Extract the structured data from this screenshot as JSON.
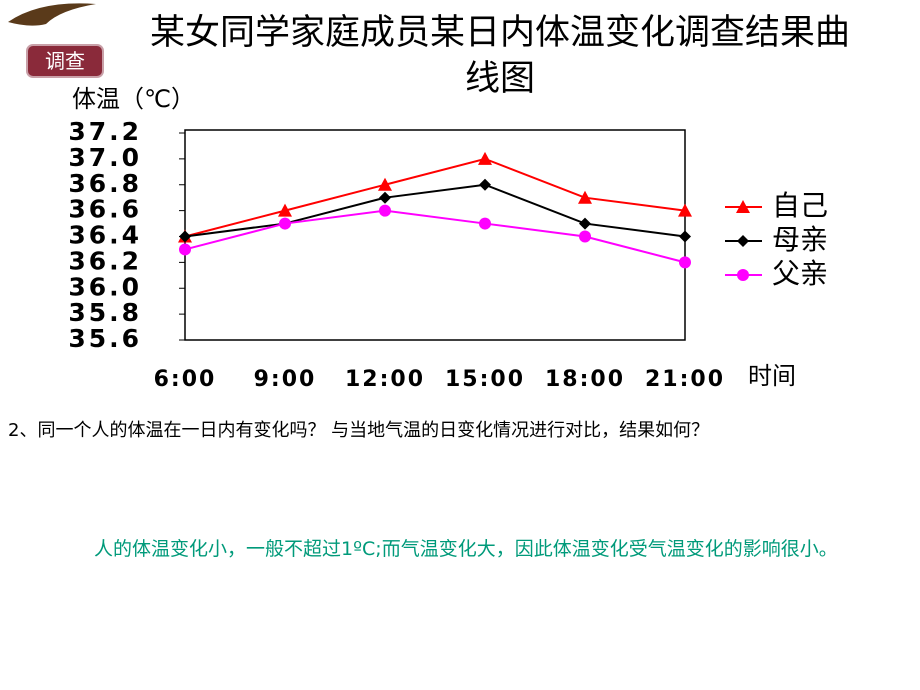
{
  "badge": "调查",
  "question": "2、同一个人的体温在一日内有变化吗？   与当地气温的日变化情况进行对比，结果如何？",
  "answer": "人的体温变化小，一般不超过1ºC;而气温变化大，因此体温变化受气温变化的影响很小。",
  "chart_data": {
    "type": "line",
    "title": "某女同学家庭成员某日内体温变化调查结果曲线图",
    "y_label": "体温（℃）",
    "x_label": "时间",
    "categories": [
      "6:00",
      "9:00",
      "12:00",
      "15:00",
      "18:00",
      "21:00"
    ],
    "series": [
      {
        "name": "自己",
        "color": "#ff0000",
        "marker": "triangle",
        "values": [
          36.4,
          36.6,
          36.8,
          37.0,
          36.7,
          36.6
        ]
      },
      {
        "name": "母亲",
        "color": "#000000",
        "marker": "diamond",
        "values": [
          36.4,
          36.5,
          36.7,
          36.8,
          36.5,
          36.4
        ]
      },
      {
        "name": "父亲",
        "color": "#ff00ff",
        "marker": "circle",
        "values": [
          36.3,
          36.5,
          36.6,
          36.5,
          36.4,
          36.2
        ]
      }
    ],
    "ylim": [
      35.6,
      37.2
    ],
    "yticks": [
      35.6,
      35.8,
      {
        "value": 36,
        "label": "36.0"
      },
      36.2,
      36.4,
      36.6,
      36.8,
      {
        "value": 37,
        "label": "37.0"
      },
      37.2
    ],
    "legend": "right"
  }
}
